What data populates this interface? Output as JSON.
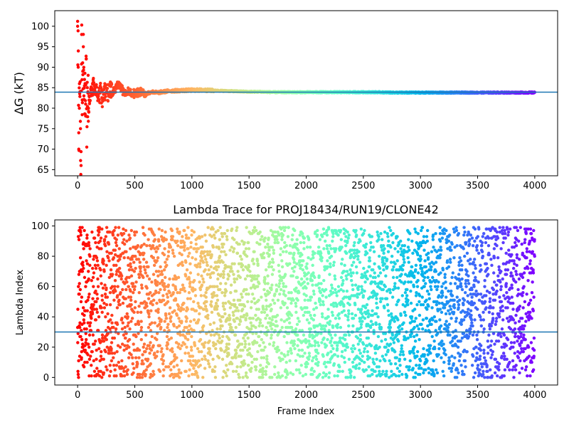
{
  "chart_data": [
    {
      "type": "scatter",
      "title": "",
      "xlabel": "",
      "ylabel": "ΔG (kT)",
      "xlim": [
        -200,
        4200
      ],
      "ylim": [
        63.5,
        103.8
      ],
      "xticks": [
        0,
        500,
        1000,
        1500,
        2000,
        2500,
        3000,
        3500,
        4000
      ],
      "yticks": [
        65,
        70,
        75,
        80,
        85,
        90,
        95,
        100
      ],
      "hline": 83.9,
      "hline_color": "#1f77b4",
      "colormap": "rainbow",
      "color_by": "frame index (0 → 4000)",
      "grid": false,
      "legend": null,
      "series_description": "Running free-energy estimate per frame; large spread (66–100) in first ~100 frames converging to ≈ 83.8–84.5 after ~800 frames.",
      "x": [
        0,
        5,
        10,
        15,
        20,
        25,
        30,
        35,
        40,
        45,
        50,
        55,
        60,
        65,
        70,
        75,
        80,
        85,
        90,
        95,
        100,
        110,
        120,
        130,
        140,
        150,
        160,
        170,
        180,
        190,
        200,
        220,
        240,
        260,
        280,
        300,
        320,
        340,
        360,
        380,
        400,
        450,
        500,
        550,
        600,
        650,
        700,
        750,
        800,
        900,
        1000,
        1100,
        1200,
        1300,
        1400,
        1500,
        1600,
        1700,
        1800,
        1900,
        2000,
        2200,
        2400,
        2600,
        2800,
        3000,
        3200,
        3400,
        3600,
        3800,
        4000
      ],
      "y": [
        100,
        90,
        70,
        80,
        84,
        75,
        66,
        98,
        82,
        89,
        95,
        83,
        87,
        86,
        81,
        92,
        78,
        85,
        84,
        80,
        83,
        82,
        85,
        84,
        86,
        83,
        85,
        82,
        84,
        83,
        84,
        82,
        84,
        83,
        85,
        84,
        84,
        85,
        86,
        85,
        84,
        84,
        83.5,
        84,
        83.5,
        84,
        83.8,
        84,
        84.2,
        84.3,
        84.4,
        84.4,
        84.3,
        84.2,
        84.1,
        84.0,
        84.0,
        83.9,
        83.9,
        83.9,
        83.9,
        83.9,
        83.9,
        83.9,
        83.8,
        83.8,
        83.8,
        83.8,
        83.8,
        83.8,
        83.8
      ]
    },
    {
      "type": "scatter",
      "title": "Lambda Trace for PROJ18434/RUN19/CLONE42",
      "xlabel": "Frame Index",
      "ylabel": "Lambda Index",
      "xlim": [
        -200,
        4200
      ],
      "ylim": [
        -5,
        104
      ],
      "xticks": [
        0,
        500,
        1000,
        1500,
        2000,
        2500,
        3000,
        3500,
        4000
      ],
      "yticks": [
        0,
        20,
        40,
        60,
        80,
        100
      ],
      "hline": 30,
      "hline_color": "#1f77b4",
      "colormap": "rainbow",
      "color_by": "frame index (0 → 4000)",
      "grid": false,
      "legend": null,
      "series_description": "≈4000 points; each frame's lambda index (0–99) appears uniformly random across the full range.",
      "n_points": 4000,
      "lambda_range": [
        0,
        99
      ]
    }
  ]
}
